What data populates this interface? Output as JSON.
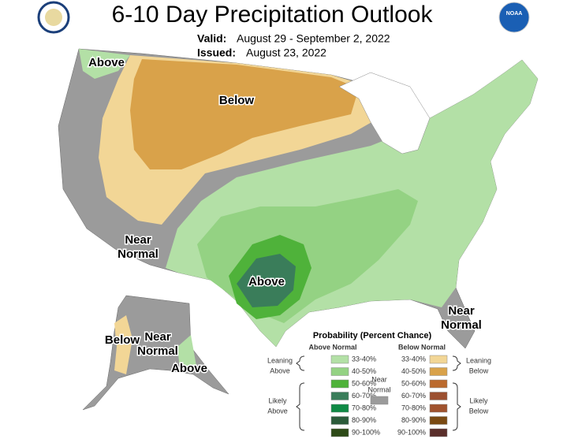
{
  "header": {
    "title": "6-10 Day Precipitation Outlook",
    "valid_label": "Valid:",
    "valid": "August 29 - September 2, 2022",
    "issued_label": "Issued:",
    "issued": "August 23, 2022",
    "logo": "NOAA"
  },
  "map_labels": [
    {
      "lines": [
        "Above"
      ]
    },
    {
      "lines": [
        "Below"
      ]
    },
    {
      "lines": [
        "Near",
        "Normal"
      ]
    },
    {
      "lines": [
        "Above"
      ]
    },
    {
      "lines": [
        "Near",
        "Normal"
      ]
    },
    {
      "lines": [
        "Below"
      ]
    },
    {
      "lines": [
        "Near",
        "Normal"
      ]
    },
    {
      "lines": [
        "Above"
      ]
    }
  ],
  "legend": {
    "title": "Probability (Percent Chance)",
    "above_heading": "Above Normal",
    "below_heading": "Below Normal",
    "above": [
      {
        "range": "33-40%",
        "color": "#b3e0a6"
      },
      {
        "range": "40-50%",
        "color": "#94d283"
      },
      {
        "range": "50-60%",
        "color": "#4fb23a"
      },
      {
        "range": "60-70%",
        "color": "#3a7d5a"
      },
      {
        "range": "70-80%",
        "color": "#0f8a45"
      },
      {
        "range": "80-90%",
        "color": "#2b5b3a"
      },
      {
        "range": "90-100%",
        "color": "#2d4a17"
      }
    ],
    "below": [
      {
        "range": "33-40%",
        "color": "#f2d696"
      },
      {
        "range": "40-50%",
        "color": "#d9a24a"
      },
      {
        "range": "50-60%",
        "color": "#bb6a2e"
      },
      {
        "range": "60-70%",
        "color": "#9c5030"
      },
      {
        "range": "70-80%",
        "color": "#a0522d"
      },
      {
        "range": "80-90%",
        "color": "#7a4a12"
      },
      {
        "range": "90-100%",
        "color": "#5a2e2a"
      }
    ],
    "leaning_above": [
      "Leaning",
      "Above"
    ],
    "likely_above": [
      "Likely",
      "Above"
    ],
    "near_normal": [
      "Near",
      "Normal"
    ],
    "leaning_below": [
      "Leaning",
      "Below"
    ],
    "likely_below": [
      "Likely",
      "Below"
    ],
    "near_color": "#9b9b9b"
  }
}
